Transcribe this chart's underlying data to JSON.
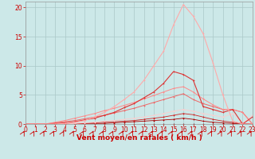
{
  "background_color": "#cce8e8",
  "grid_color": "#aac8c8",
  "xlabel": "Vent moyen/en rafales ( km/h )",
  "xlabel_color": "#cc0000",
  "tick_color": "#cc0000",
  "tick_fontsize": 5.5,
  "xlabel_fontsize": 6.5,
  "xlim": [
    0,
    23
  ],
  "ylim": [
    0,
    21
  ],
  "yticks": [
    0,
    5,
    10,
    15,
    20
  ],
  "xticks": [
    0,
    1,
    2,
    3,
    4,
    5,
    6,
    7,
    8,
    9,
    10,
    11,
    12,
    13,
    14,
    15,
    16,
    17,
    18,
    19,
    20,
    21,
    22,
    23
  ],
  "series": [
    {
      "x": [
        0,
        1,
        2,
        3,
        4,
        5,
        6,
        7,
        8,
        9,
        10,
        11,
        12,
        13,
        14,
        15,
        16,
        17,
        18,
        19,
        20,
        21,
        22,
        23
      ],
      "y": [
        0,
        0,
        0,
        0,
        0,
        0,
        0,
        0,
        0,
        0,
        0,
        0,
        0,
        0,
        0,
        0,
        0,
        0,
        0,
        0,
        0,
        0,
        0,
        0
      ],
      "color": "#880000",
      "lw": 0.6,
      "marker": "+"
    },
    {
      "x": [
        0,
        1,
        2,
        3,
        4,
        5,
        6,
        7,
        8,
        9,
        10,
        11,
        12,
        13,
        14,
        15,
        16,
        17,
        18,
        19,
        20,
        21,
        22,
        23
      ],
      "y": [
        0,
        0,
        0,
        0,
        0,
        0,
        0.1,
        0.1,
        0.1,
        0.2,
        0.3,
        0.4,
        0.5,
        0.6,
        0.7,
        0.8,
        1.0,
        0.8,
        0.5,
        0.3,
        0.2,
        0.1,
        0,
        0
      ],
      "color": "#aa0000",
      "lw": 0.6,
      "marker": "+"
    },
    {
      "x": [
        0,
        1,
        2,
        3,
        4,
        5,
        6,
        7,
        8,
        9,
        10,
        11,
        12,
        13,
        14,
        15,
        16,
        17,
        18,
        19,
        20,
        21,
        22,
        23
      ],
      "y": [
        0,
        0,
        0,
        0,
        0,
        0,
        0.1,
        0.2,
        0.3,
        0.4,
        0.5,
        0.6,
        0.8,
        1.0,
        1.2,
        1.5,
        1.8,
        1.6,
        1.2,
        0.8,
        0.5,
        0.3,
        0.1,
        0
      ],
      "color": "#cc2222",
      "lw": 0.6,
      "marker": "+"
    },
    {
      "x": [
        0,
        1,
        2,
        3,
        4,
        5,
        6,
        7,
        8,
        9,
        10,
        11,
        12,
        13,
        14,
        15,
        16,
        17,
        18,
        19,
        20,
        21,
        22,
        23
      ],
      "y": [
        0,
        0,
        0,
        0,
        0,
        0.1,
        0.2,
        0.3,
        0.5,
        0.6,
        0.8,
        1.0,
        1.2,
        1.5,
        1.8,
        2.2,
        2.5,
        2.2,
        1.8,
        1.5,
        1.2,
        1.8,
        0.1,
        1.5
      ],
      "color": "#ffcccc",
      "lw": 0.6,
      "marker": "+"
    },
    {
      "x": [
        0,
        1,
        2,
        3,
        4,
        5,
        6,
        7,
        8,
        9,
        10,
        11,
        12,
        13,
        14,
        15,
        16,
        17,
        18,
        19,
        20,
        21,
        22,
        23
      ],
      "y": [
        0,
        0,
        0,
        0.2,
        0.4,
        0.6,
        0.9,
        1.2,
        1.5,
        1.9,
        2.3,
        2.7,
        3.2,
        3.7,
        4.2,
        4.7,
        5.2,
        4.2,
        3.5,
        3.0,
        2.5,
        2.5,
        2.0,
        0.0
      ],
      "color": "#ee6666",
      "lw": 0.7,
      "marker": "+"
    },
    {
      "x": [
        0,
        1,
        2,
        3,
        4,
        5,
        6,
        7,
        8,
        9,
        10,
        11,
        12,
        13,
        14,
        15,
        16,
        17,
        18,
        19,
        20,
        21,
        22,
        23
      ],
      "y": [
        0,
        0,
        0,
        0.3,
        0.6,
        1.0,
        1.4,
        1.8,
        2.3,
        2.7,
        3.2,
        3.7,
        4.3,
        4.9,
        5.5,
        6.1,
        6.4,
        5.5,
        4.3,
        3.3,
        2.5,
        2.5,
        2.0,
        0.0
      ],
      "color": "#ff8888",
      "lw": 0.7,
      "marker": "+"
    },
    {
      "x": [
        0,
        1,
        2,
        3,
        4,
        5,
        6,
        7,
        8,
        9,
        10,
        11,
        12,
        13,
        14,
        15,
        16,
        17,
        18,
        19,
        20,
        21,
        22,
        23
      ],
      "y": [
        0,
        0,
        0,
        0.1,
        0.2,
        0.4,
        0.7,
        1.0,
        1.5,
        2.0,
        2.8,
        3.5,
        4.5,
        5.5,
        7.0,
        9.0,
        8.5,
        7.5,
        3.0,
        2.5,
        2.0,
        2.5,
        0.0,
        1.2
      ],
      "color": "#dd3333",
      "lw": 0.8,
      "marker": "+"
    },
    {
      "x": [
        0,
        1,
        2,
        3,
        4,
        5,
        6,
        7,
        8,
        9,
        10,
        11,
        12,
        13,
        14,
        15,
        16,
        17,
        18,
        19,
        20,
        21,
        22,
        23
      ],
      "y": [
        0,
        0,
        0,
        0,
        0.1,
        0.3,
        0.6,
        1.2,
        2.0,
        3.0,
        4.2,
        5.5,
        7.5,
        10.0,
        12.5,
        17.0,
        20.5,
        18.5,
        15.5,
        10.5,
        5.0,
        0.5,
        0.0,
        0.0
      ],
      "color": "#ffaaaa",
      "lw": 0.8,
      "marker": "+"
    }
  ]
}
